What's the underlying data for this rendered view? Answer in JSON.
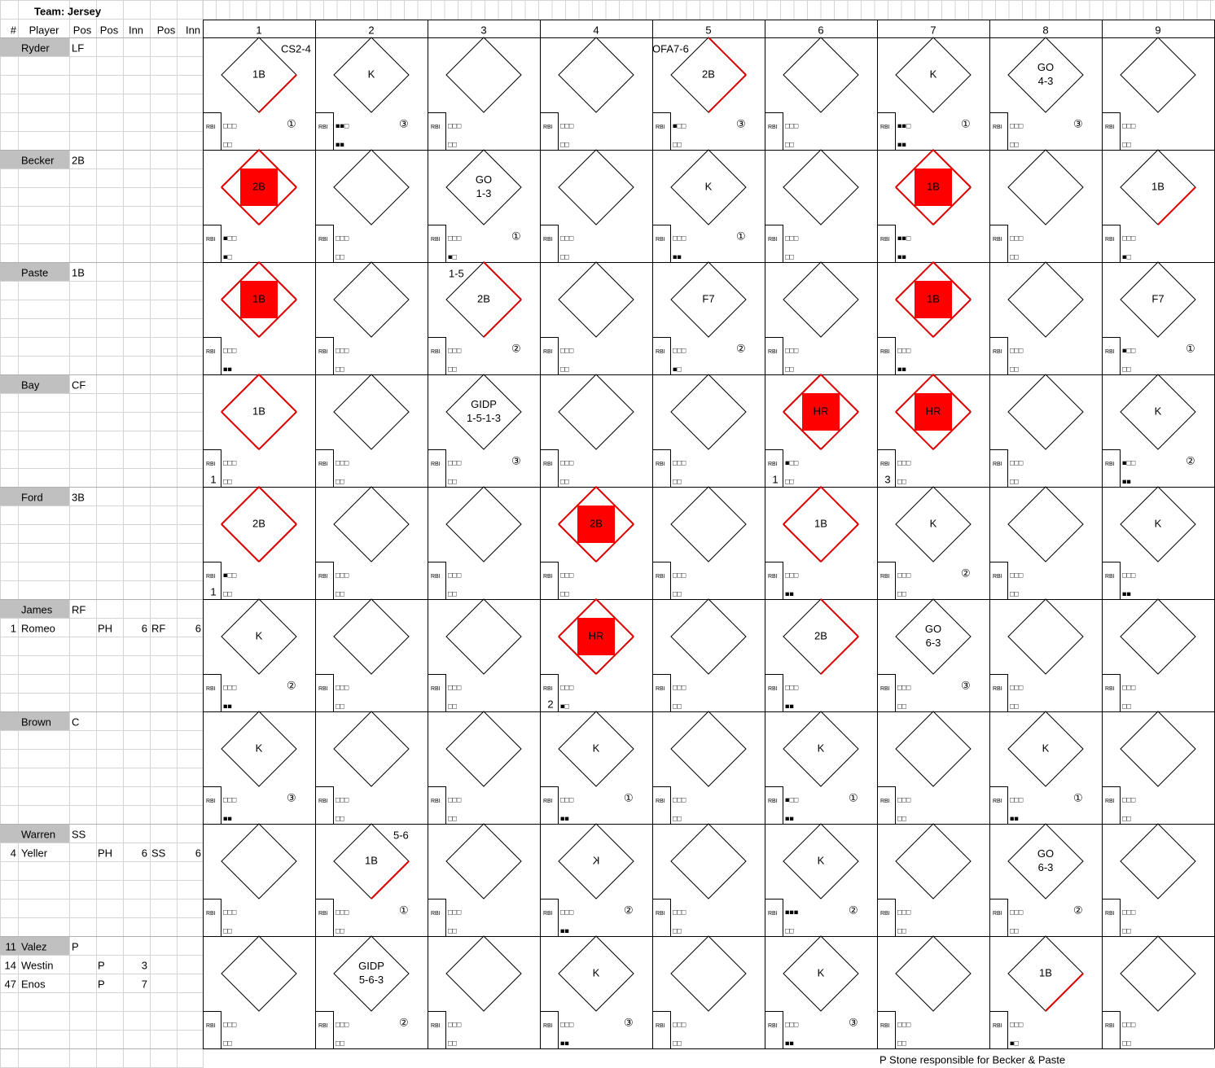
{
  "header": {
    "title": "Team: Jersey",
    "columns": [
      "#",
      "Player",
      "Pos",
      "Pos",
      "Inn",
      "Pos",
      "Inn"
    ],
    "innings": [
      1,
      2,
      3,
      4,
      5,
      6,
      7,
      8,
      9
    ]
  },
  "rows": [
    {
      "lines": [
        [
          null,
          "Ryder",
          "LF",
          null,
          null,
          null,
          null
        ]
      ],
      "cells": [
        {
          "result": [
            "1B"
          ],
          "bases": 1,
          "balls": "□□□",
          "strikes": "□□",
          "out": "①",
          "note": "CS2-4",
          "note_side": "right"
        },
        {
          "result": [
            "K"
          ],
          "balls": "■■□",
          "strikes": "■■",
          "out": "③"
        },
        {
          "balls": "□□□",
          "strikes": "□□"
        },
        {
          "balls": "□□□",
          "strikes": "□□"
        },
        {
          "result": [
            "2B"
          ],
          "bases": 2,
          "balls": "■□□",
          "strikes": "□□",
          "out": "③",
          "note": "OFA7-6",
          "note_side": "left"
        },
        {
          "balls": "□□□",
          "strikes": "□□"
        },
        {
          "result": [
            "K"
          ],
          "balls": "■■□",
          "strikes": "■■",
          "out": "①"
        },
        {
          "result": [
            "GO",
            "4-3"
          ],
          "balls": "□□□",
          "strikes": "□□",
          "out": "③"
        },
        {
          "balls": "□□□",
          "strikes": "□□"
        }
      ]
    },
    {
      "lines": [
        [
          null,
          "Becker",
          "2B",
          null,
          null,
          null,
          null
        ]
      ],
      "cells": [
        {
          "result": [
            "2B"
          ],
          "bases": 4,
          "scored": true,
          "balls": "■□□",
          "strikes": "■□"
        },
        {
          "balls": "□□□",
          "strikes": "□□"
        },
        {
          "result": [
            "GO",
            "1-3"
          ],
          "balls": "□□□",
          "strikes": "■□",
          "out": "①"
        },
        {
          "balls": "□□□",
          "strikes": "□□"
        },
        {
          "result": [
            "K"
          ],
          "balls": "□□□",
          "strikes": "■■",
          "out": "①"
        },
        {
          "balls": "□□□",
          "strikes": "□□"
        },
        {
          "result": [
            "1B"
          ],
          "bases": 4,
          "scored": true,
          "balls": "■■□",
          "strikes": "■■"
        },
        {
          "balls": "□□□",
          "strikes": "□□"
        },
        {
          "result": [
            "1B"
          ],
          "bases": 1,
          "balls": "□□□",
          "strikes": "■□"
        }
      ]
    },
    {
      "lines": [
        [
          null,
          "Paste",
          "1B",
          null,
          null,
          null,
          null
        ]
      ],
      "cells": [
        {
          "result": [
            "1B"
          ],
          "bases": 4,
          "scored": true,
          "balls": "□□□",
          "strikes": "■■"
        },
        {
          "balls": "□□□",
          "strikes": "□□"
        },
        {
          "result": [
            "2B"
          ],
          "bases": 2,
          "balls": "□□□",
          "strikes": "□□",
          "out": "②",
          "note": "1-5",
          "note_side": "left"
        },
        {
          "balls": "□□□",
          "strikes": "□□"
        },
        {
          "result": [
            "F7"
          ],
          "balls": "□□□",
          "strikes": "■□",
          "out": "②"
        },
        {
          "balls": "□□□",
          "strikes": "□□"
        },
        {
          "result": [
            "1B"
          ],
          "bases": 4,
          "scored": true,
          "balls": "□□□",
          "strikes": "■■"
        },
        {
          "balls": "□□□",
          "strikes": "□□"
        },
        {
          "result": [
            "F7"
          ],
          "balls": "■□□",
          "strikes": "□□",
          "out": "①"
        }
      ]
    },
    {
      "lines": [
        [
          null,
          "Bay",
          "CF",
          null,
          null,
          null,
          null
        ]
      ],
      "cells": [
        {
          "result": [
            "1B"
          ],
          "bases": 4,
          "balls": "□□□",
          "strikes": "□□",
          "rbi": 1
        },
        {
          "balls": "□□□",
          "strikes": "□□"
        },
        {
          "result": [
            "GIDP",
            "1-5-1-3"
          ],
          "balls": "□□□",
          "strikes": "□□",
          "out": "③"
        },
        {
          "balls": "□□□",
          "strikes": "□□"
        },
        {
          "balls": "□□□",
          "strikes": "□□"
        },
        {
          "result": [
            "HR"
          ],
          "bases": 4,
          "scored": true,
          "balls": "■□□",
          "strikes": "□□",
          "rbi": 1
        },
        {
          "result": [
            "HR"
          ],
          "bases": 4,
          "scored": true,
          "balls": "□□□",
          "strikes": "□□",
          "rbi": 3
        },
        {
          "balls": "□□□",
          "strikes": "□□"
        },
        {
          "result": [
            "K"
          ],
          "balls": "■□□",
          "strikes": "■■",
          "out": "②"
        }
      ]
    },
    {
      "lines": [
        [
          null,
          "Ford",
          "3B",
          null,
          null,
          null,
          null
        ]
      ],
      "cells": [
        {
          "result": [
            "2B"
          ],
          "bases": 4,
          "balls": "■□□",
          "strikes": "□□",
          "rbi": 1
        },
        {
          "balls": "□□□",
          "strikes": "□□"
        },
        {
          "balls": "□□□",
          "strikes": "□□"
        },
        {
          "result": [
            "2B"
          ],
          "bases": 4,
          "scored": true,
          "balls": "□□□",
          "strikes": "□□"
        },
        {
          "balls": "□□□",
          "strikes": "□□"
        },
        {
          "result": [
            "1B"
          ],
          "bases": 4,
          "balls": "□□□",
          "strikes": "■■"
        },
        {
          "result": [
            "K"
          ],
          "balls": "□□□",
          "strikes": "□□",
          "out": "②"
        },
        {
          "balls": "□□□",
          "strikes": "□□"
        },
        {
          "result": [
            "K"
          ],
          "balls": "□□□",
          "strikes": "■■"
        }
      ]
    },
    {
      "lines": [
        [
          null,
          "James",
          "RF",
          null,
          null,
          null,
          null
        ],
        [
          "1",
          "Romeo",
          null,
          "PH",
          "6",
          "RF",
          "6"
        ]
      ],
      "cells": [
        {
          "result": [
            "K"
          ],
          "balls": "□□□",
          "strikes": "■■",
          "out": "②"
        },
        {
          "balls": "□□□",
          "strikes": "□□"
        },
        {
          "balls": "□□□",
          "strikes": "□□"
        },
        {
          "result": [
            "HR"
          ],
          "bases": 4,
          "scored": true,
          "balls": "□□□",
          "strikes": "■□",
          "rbi": 2
        },
        {
          "balls": "□□□",
          "strikes": "□□"
        },
        {
          "result": [
            "2B"
          ],
          "bases": 2,
          "balls": "□□□",
          "strikes": "■■"
        },
        {
          "result": [
            "GO",
            "6-3"
          ],
          "balls": "□□□",
          "strikes": "□□",
          "out": "③"
        },
        {
          "balls": "□□□",
          "strikes": "□□"
        },
        {
          "balls": "□□□",
          "strikes": "□□"
        }
      ]
    },
    {
      "lines": [
        [
          null,
          "Brown",
          "C",
          null,
          null,
          null,
          null
        ]
      ],
      "cells": [
        {
          "result": [
            "K"
          ],
          "balls": "□□□",
          "strikes": "■■",
          "out": "③"
        },
        {
          "balls": "□□□",
          "strikes": "□□"
        },
        {
          "balls": "□□□",
          "strikes": "□□"
        },
        {
          "result": [
            "K"
          ],
          "balls": "□□□",
          "strikes": "■■",
          "out": "①"
        },
        {
          "balls": "□□□",
          "strikes": "□□"
        },
        {
          "result": [
            "K"
          ],
          "balls": "■□□",
          "strikes": "■■",
          "out": "①"
        },
        {
          "balls": "□□□",
          "strikes": "□□"
        },
        {
          "result": [
            "K"
          ],
          "balls": "□□□",
          "strikes": "■■",
          "out": "①"
        },
        {
          "balls": "□□□",
          "strikes": "□□"
        }
      ]
    },
    {
      "lines": [
        [
          null,
          "Warren",
          "SS",
          null,
          null,
          null,
          null
        ],
        [
          "4",
          "Yeller",
          null,
          "PH",
          "6",
          "SS",
          "6"
        ]
      ],
      "cells": [
        {
          "balls": "□□□",
          "strikes": "□□"
        },
        {
          "result": [
            "1B"
          ],
          "bases": 1,
          "balls": "□□□",
          "strikes": "□□",
          "out": "①",
          "note": "5-6",
          "note_side": "right"
        },
        {
          "balls": "□□□",
          "strikes": "□□"
        },
        {
          "result": [
            "K"
          ],
          "mirrored": true,
          "balls": "□□□",
          "strikes": "■■",
          "out": "②"
        },
        {
          "balls": "□□□",
          "strikes": "□□"
        },
        {
          "result": [
            "K"
          ],
          "balls": "■■■",
          "strikes": "□□",
          "out": "②"
        },
        {
          "balls": "□□□",
          "strikes": "□□"
        },
        {
          "result": [
            "GO",
            "6-3"
          ],
          "balls": "□□□",
          "strikes": "□□",
          "out": "②"
        },
        {
          "balls": "□□□",
          "strikes": "□□"
        }
      ]
    },
    {
      "lines": [
        [
          "11",
          "Valez",
          "P",
          null,
          null,
          null,
          null
        ],
        [
          "14",
          "Westin",
          null,
          "P",
          "3",
          null,
          null
        ],
        [
          "47",
          "Enos",
          null,
          "P",
          "7",
          null,
          null
        ]
      ],
      "cells": [
        {
          "balls": "□□□",
          "strikes": "□□"
        },
        {
          "result": [
            "GIDP",
            "5-6-3"
          ],
          "balls": "□□□",
          "strikes": "□□",
          "out": "②"
        },
        {
          "balls": "□□□",
          "strikes": "□□"
        },
        {
          "result": [
            "K"
          ],
          "balls": "□□□",
          "strikes": "■■",
          "out": "③"
        },
        {
          "balls": "□□□",
          "strikes": "□□"
        },
        {
          "result": [
            "K"
          ],
          "balls": "□□□",
          "strikes": "■■",
          "out": "③"
        },
        {
          "balls": "□□□",
          "strikes": "□□"
        },
        {
          "result": [
            "1B"
          ],
          "bases": 1,
          "balls": "□□□",
          "strikes": "■□"
        },
        {
          "balls": "□□□",
          "strikes": "□□"
        }
      ]
    }
  ],
  "rbi_label": "RBI",
  "footer": "P Stone responsible for Becker & Paste"
}
